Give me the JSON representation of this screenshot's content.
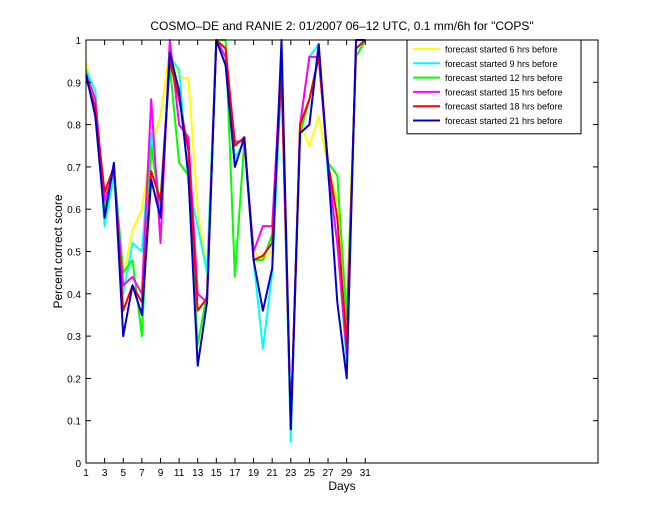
{
  "chart_data": {
    "type": "line",
    "title": "COSMO–DE and RANIE 2: 01/2007 06–12 UTC, 0.1 mm/6h for \"COPS\"",
    "xlabel": "Days",
    "ylabel": "Percent correct score",
    "xlim": [
      1,
      56
    ],
    "ylim": [
      0,
      1
    ],
    "x_ticks": [
      1,
      3,
      5,
      7,
      9,
      11,
      13,
      15,
      17,
      19,
      21,
      23,
      25,
      27,
      29,
      31
    ],
    "y_ticks": [
      0,
      0.1,
      0.2,
      0.3,
      0.4,
      0.5,
      0.6,
      0.7,
      0.8,
      0.9,
      1
    ],
    "y_tick_labels": [
      "0",
      "0.1",
      "0.2",
      "0.3",
      "0.4",
      "0.5",
      "0.6",
      "0.7",
      "0.8",
      "0.9",
      "1"
    ],
    "legend_position": "top-right",
    "x": [
      1,
      2,
      3,
      4,
      5,
      6,
      7,
      8,
      9,
      10,
      11,
      12,
      13,
      14,
      15,
      16,
      17,
      18,
      19,
      20,
      21,
      22,
      23,
      24,
      25,
      26,
      27,
      28,
      29,
      30,
      31
    ],
    "series": [
      {
        "name": "forecast started 6 hrs before",
        "color": "#ffff00",
        "values": [
          0.95,
          0.85,
          0.62,
          0.7,
          0.44,
          0.55,
          0.6,
          0.75,
          0.82,
          0.98,
          0.91,
          0.91,
          0.6,
          0.45,
          1.0,
          0.95,
          0.76,
          0.76,
          0.5,
          0.48,
          0.5,
          0.92,
          0.08,
          0.8,
          0.75,
          0.82,
          0.7,
          0.62,
          0.36,
          0.96,
          1.0
        ]
      },
      {
        "name": "forecast started 9 hrs before",
        "color": "#00ffff",
        "values": [
          0.93,
          0.88,
          0.56,
          0.68,
          0.4,
          0.52,
          0.5,
          0.78,
          0.6,
          0.96,
          0.93,
          0.66,
          0.56,
          0.45,
          1.0,
          0.96,
          0.72,
          0.76,
          0.48,
          0.27,
          0.45,
          0.92,
          0.05,
          0.8,
          0.96,
          0.99,
          0.68,
          0.52,
          0.24,
          0.98,
          1.0
        ]
      },
      {
        "name": "forecast started 12 hrs before",
        "color": "#00ff00",
        "values": [
          0.91,
          0.84,
          0.6,
          0.7,
          0.45,
          0.48,
          0.3,
          0.75,
          0.6,
          0.94,
          0.71,
          0.68,
          0.28,
          0.4,
          1.0,
          1.0,
          0.44,
          0.76,
          0.48,
          0.48,
          0.54,
          0.93,
          0.08,
          0.78,
          0.86,
          0.96,
          0.71,
          0.68,
          0.34,
          0.96,
          1.0
        ]
      },
      {
        "name": "forecast started 15 hrs before",
        "color": "#ff00ff",
        "values": [
          0.92,
          0.86,
          0.62,
          0.69,
          0.42,
          0.44,
          0.4,
          0.86,
          0.52,
          1.0,
          0.8,
          0.77,
          0.4,
          0.38,
          1.0,
          0.96,
          0.76,
          0.76,
          0.5,
          0.56,
          0.56,
          0.96,
          0.08,
          0.8,
          0.96,
          0.96,
          0.7,
          0.52,
          0.26,
          0.98,
          1.0
        ]
      },
      {
        "name": "forecast started 18 hrs before",
        "color": "#ff0000",
        "values": [
          0.91,
          0.84,
          0.64,
          0.7,
          0.36,
          0.42,
          0.38,
          0.69,
          0.62,
          0.95,
          0.86,
          0.74,
          0.36,
          0.39,
          1.0,
          0.98,
          0.75,
          0.77,
          0.48,
          0.49,
          0.52,
          0.92,
          0.09,
          0.8,
          0.86,
          0.96,
          0.71,
          0.58,
          0.28,
          0.98,
          1.0
        ]
      },
      {
        "name": "forecast started 21 hrs before",
        "color": "#0000cc",
        "values": [
          0.92,
          0.82,
          0.58,
          0.71,
          0.3,
          0.42,
          0.35,
          0.67,
          0.58,
          0.97,
          0.88,
          0.68,
          0.23,
          0.38,
          1.0,
          0.94,
          0.7,
          0.77,
          0.48,
          0.36,
          0.46,
          1.0,
          0.08,
          0.78,
          0.8,
          0.99,
          0.7,
          0.38,
          0.2,
          1.0,
          1.0
        ]
      }
    ]
  }
}
